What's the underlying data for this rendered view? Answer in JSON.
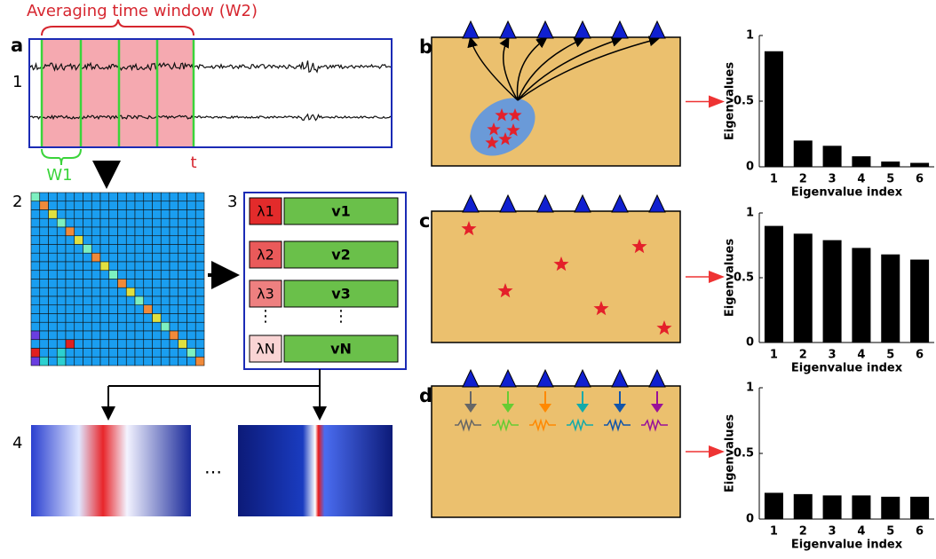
{
  "panel_labels": {
    "a": "a",
    "b": "b",
    "c": "c",
    "d": "d"
  },
  "panel_a": {
    "window_title": "Averaging time window (W2)",
    "row_number": "1",
    "w1": "W1",
    "t": "t"
  },
  "step2": "2",
  "step3": "3",
  "step4": "4",
  "eigen": {
    "lambdas": [
      "λ1",
      "λ2",
      "λ3",
      "λN"
    ],
    "vectors": [
      "v1",
      "v2",
      "v3",
      "vN"
    ],
    "vdots": "⋮"
  },
  "ellipsis": "…",
  "chart_data": [
    {
      "type": "bar",
      "categories": [
        "1",
        "2",
        "3",
        "4",
        "5",
        "6"
      ],
      "values": [
        0.88,
        0.2,
        0.16,
        0.08,
        0.04,
        0.03
      ],
      "color": "#000000",
      "ylim": [
        0,
        1
      ],
      "yticks": [
        0,
        0.5,
        1
      ],
      "y_label": "Eigenvalues",
      "x_label": "Eigenvalue index"
    },
    {
      "type": "bar",
      "categories": [
        "1",
        "2",
        "3",
        "4",
        "5",
        "6"
      ],
      "values": [
        0.9,
        0.84,
        0.79,
        0.73,
        0.68,
        0.64
      ],
      "color": "#000000",
      "ylim": [
        0,
        1
      ],
      "yticks": [
        0,
        0.5,
        1
      ],
      "y_label": "Eigenvalues",
      "x_label": "Eigenvalue index"
    },
    {
      "type": "bar",
      "categories": [
        "1",
        "2",
        "3",
        "4",
        "5",
        "6"
      ],
      "values": [
        0.2,
        0.19,
        0.18,
        0.18,
        0.17,
        0.17
      ],
      "color": "#000000",
      "ylim": [
        0,
        1
      ],
      "yticks": [
        0,
        0.5,
        1
      ],
      "y_label": "Eigenvalues",
      "x_label": "Eigenvalue index"
    }
  ]
}
